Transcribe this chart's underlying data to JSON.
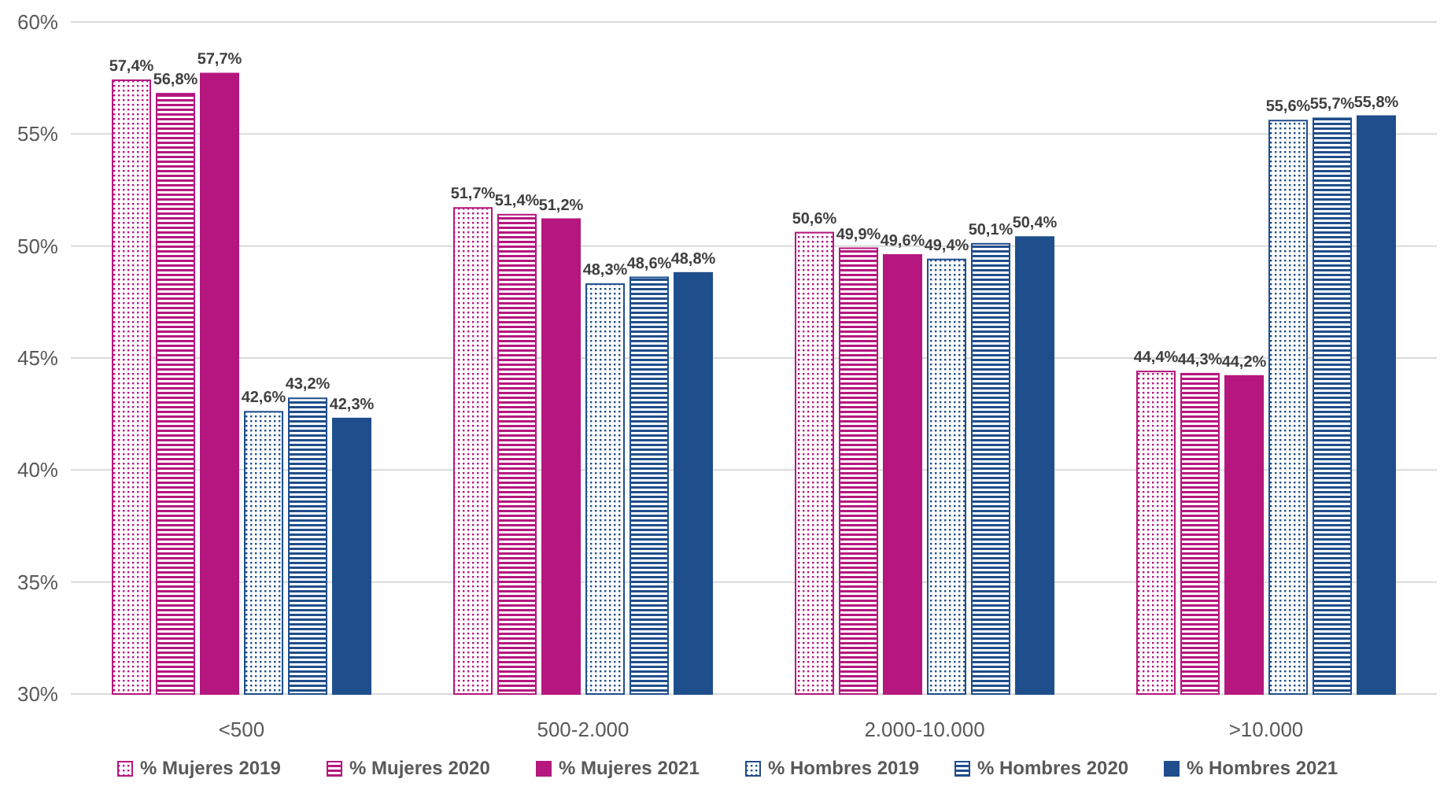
{
  "chart_data": {
    "type": "bar",
    "categories": [
      "<500",
      "500-2.000",
      "2.000-10.000",
      ">10.000"
    ],
    "series": [
      {
        "name": "% Mujeres 2019",
        "color": "#b5177f",
        "values": [
          57.4,
          51.7,
          50.6,
          44.4
        ],
        "value_labels": [
          "57,4%",
          "51,7%",
          "50,6%",
          "44,4%"
        ]
      },
      {
        "name": "% Mujeres 2020",
        "color": "#b5177f",
        "values": [
          56.8,
          51.4,
          49.9,
          44.3
        ],
        "value_labels": [
          "56,8%",
          "51,4%",
          "49,9%",
          "44,3%"
        ]
      },
      {
        "name": "% Mujeres 2021",
        "color": "#b5177f",
        "values": [
          57.7,
          51.2,
          49.6,
          44.2
        ],
        "value_labels": [
          "57,7%",
          "51,2%",
          "49,6%",
          "44,2%"
        ]
      },
      {
        "name": "% Hombres 2019",
        "color": "#1f4e8c",
        "values": [
          42.6,
          48.3,
          49.4,
          55.6
        ],
        "value_labels": [
          "42,6%",
          "48,3%",
          "49,4%",
          "55,6%"
        ]
      },
      {
        "name": "% Hombres 2020",
        "color": "#1f4e8c",
        "values": [
          43.2,
          48.6,
          50.1,
          55.7
        ],
        "value_labels": [
          "43,2%",
          "48,6%",
          "50,1%",
          "55,7%"
        ]
      },
      {
        "name": "% Hombres 2021",
        "color": "#1f4e8c",
        "values": [
          42.3,
          48.8,
          50.4,
          55.8
        ],
        "value_labels": [
          "42,3%",
          "48,8%",
          "50,4%",
          "55,8%"
        ]
      }
    ],
    "ylim": [
      30,
      60
    ],
    "yticks": [
      {
        "value": 30,
        "label": "30%"
      },
      {
        "value": 35,
        "label": "35%"
      },
      {
        "value": 40,
        "label": "40%"
      },
      {
        "value": 45,
        "label": "45%"
      },
      {
        "value": 50,
        "label": "50%"
      },
      {
        "value": 55,
        "label": "55%"
      },
      {
        "value": 60,
        "label": "60%"
      }
    ],
    "grid": "y",
    "legend": "bottom"
  }
}
